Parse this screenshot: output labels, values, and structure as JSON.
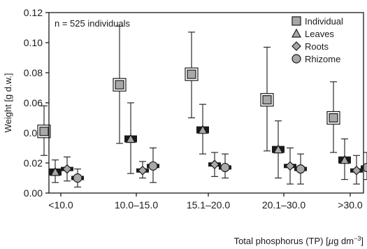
{
  "chart_data": {
    "type": "scatter",
    "annotation": "n = 525 individuals",
    "ylabel": "Weight [g d.w.]",
    "xlabel_parts": {
      "pre": "Total phosphorus (TP) [",
      "mu": "µ",
      "mid": "g dm",
      "sup": "−3",
      "post": "]"
    },
    "categories": [
      "<10.0",
      "10.0–15.0",
      "15.1–20.0",
      "20.1–30.0",
      ">30.0"
    ],
    "ylim": [
      0.0,
      0.12
    ],
    "yticks": [
      "0.00",
      "0.02",
      "0.04",
      "0.06",
      "0.08",
      "0.10",
      "0.12"
    ],
    "legend_position": "top-right",
    "series": [
      {
        "name": "Individual",
        "marker": "square",
        "color": "#a8a8a8",
        "values": [
          0.041,
          0.072,
          0.079,
          0.062,
          0.05
        ],
        "lower": [
          0.025,
          0.033,
          0.05,
          0.028,
          0.027
        ],
        "upper": [
          0.058,
          0.111,
          0.107,
          0.097,
          0.074
        ]
      },
      {
        "name": "Leaves",
        "marker": "triangle",
        "color": "#a8a8a8",
        "values": [
          0.014,
          0.036,
          0.042,
          0.029,
          0.022
        ],
        "lower": [
          0.007,
          0.013,
          0.026,
          0.01,
          0.009
        ],
        "upper": [
          0.022,
          0.06,
          0.059,
          0.048,
          0.036
        ]
      },
      {
        "name": "Roots",
        "marker": "diamond",
        "color": "#a8a8a8",
        "values": [
          0.016,
          0.015,
          0.019,
          0.018,
          0.015
        ],
        "lower": [
          0.008,
          0.01,
          0.011,
          0.006,
          0.006
        ],
        "upper": [
          0.024,
          0.021,
          0.027,
          0.03,
          0.025
        ]
      },
      {
        "name": "Rhizome",
        "marker": "circle",
        "color": "#a8a8a8",
        "values": [
          0.01,
          0.018,
          0.017,
          0.016,
          0.017
        ],
        "lower": [
          0.004,
          0.007,
          0.01,
          0.006,
          0.009
        ],
        "upper": [
          0.016,
          0.03,
          0.026,
          0.026,
          0.027
        ]
      }
    ]
  }
}
